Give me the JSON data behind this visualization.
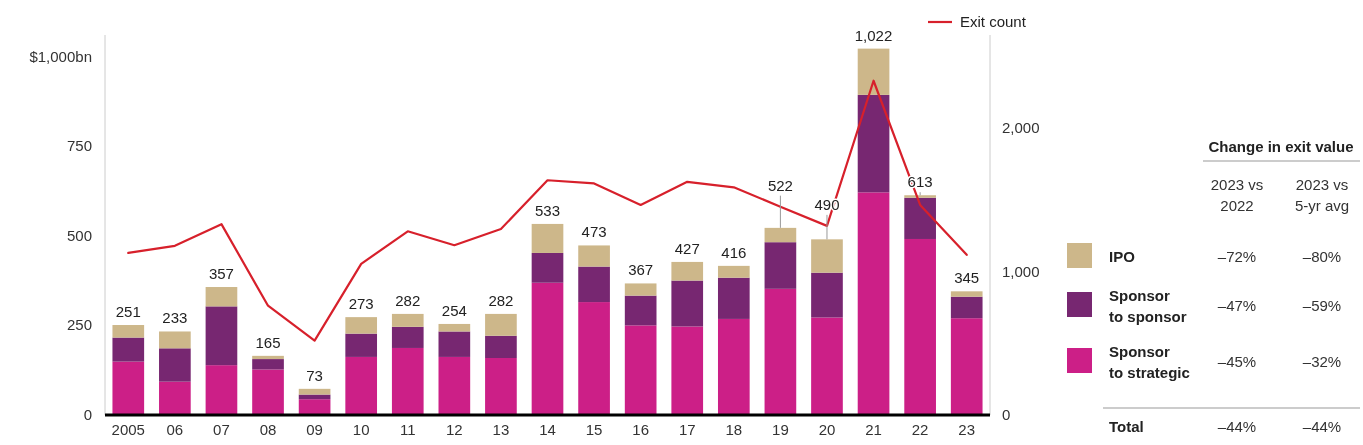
{
  "chart_data": {
    "type": "bar",
    "stacked": true,
    "categories": [
      "2005",
      "06",
      "07",
      "08",
      "09",
      "10",
      "11",
      "12",
      "13",
      "14",
      "15",
      "16",
      "17",
      "18",
      "19",
      "20",
      "21",
      "22",
      "23"
    ],
    "series": [
      {
        "name": "Sponsor to strategic",
        "color": "#cc1f87",
        "values": [
          149,
          93,
          139,
          127,
          44,
          162,
          187,
          162,
          159,
          369,
          315,
          250,
          247,
          268,
          352,
          272,
          621,
          491,
          270
        ]
      },
      {
        "name": "Sponsor to sponsor",
        "color": "#772771",
        "values": [
          67,
          93,
          164,
          29,
          13,
          65,
          59,
          71,
          62,
          83,
          99,
          83,
          128,
          115,
          130,
          125,
          272,
          115,
          60
        ]
      },
      {
        "name": "IPO",
        "color": "#cdb78a",
        "values": [
          35,
          47,
          54,
          9,
          16,
          46,
          36,
          21,
          61,
          81,
          59,
          34,
          52,
          33,
          40,
          93,
          129,
          7,
          15
        ]
      },
      {
        "name": "Exit count",
        "type": "line",
        "axis": "y2",
        "color": "#d7202b",
        "values": [
          1130,
          1180,
          1331,
          762,
          519,
          1054,
          1281,
          1184,
          1297,
          1637,
          1615,
          1465,
          1626,
          1588,
          1453,
          1319,
          2331,
          1465,
          1117
        ]
      }
    ],
    "totals": [
      "251",
      "233",
      "357",
      "165",
      "73",
      "273",
      "282",
      "254",
      "282",
      "533",
      "473",
      "367",
      "427",
      "416",
      "522",
      "490",
      "1,022",
      "613",
      "345"
    ],
    "ylim": [
      0,
      1060
    ],
    "yticks": [
      0,
      250,
      500,
      750,
      {
        "value": 1000,
        "label": "$1,000bn"
      }
    ],
    "y2lim": [
      0,
      2650
    ],
    "y2ticks": [
      0,
      {
        "value": 1000,
        "label": "1,000"
      },
      {
        "value": 2000,
        "label": "2,000"
      }
    ],
    "grid": false,
    "legend": "right",
    "annotations": [
      "Change in exit value",
      "2023 vs 2022",
      "2023 vs 5-yr avg",
      "–72%",
      "–80%",
      "–47%",
      "–59%",
      "–45%",
      "–32%",
      "Total",
      "–44%",
      "–44%"
    ]
  }
}
